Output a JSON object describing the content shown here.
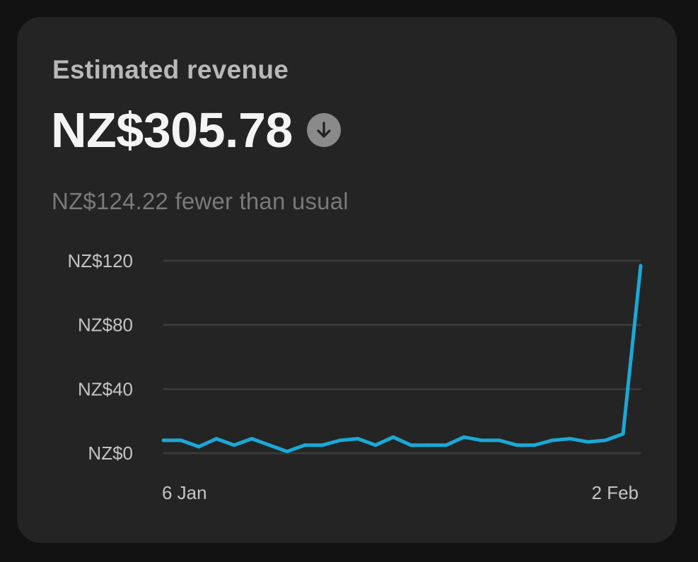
{
  "card": {
    "title": "Estimated revenue",
    "amount": "NZ$305.78",
    "trend_icon": "arrow-down-circle-icon",
    "comparison": "NZ$124.22 fewer than usual"
  },
  "colors": {
    "background": "#121212",
    "card": "#242424",
    "line": "#1aa9d6",
    "grid": "#3a3a3a"
  },
  "chart_data": {
    "type": "line",
    "title": "",
    "xlabel": "",
    "ylabel": "",
    "ylim": [
      0,
      120
    ],
    "y_ticks": [
      {
        "value": 120,
        "label": "NZ$120"
      },
      {
        "value": 80,
        "label": "NZ$80"
      },
      {
        "value": 40,
        "label": "NZ$40"
      },
      {
        "value": 0,
        "label": "NZ$0"
      }
    ],
    "x_tick_labels": [
      {
        "index": 0,
        "label": "6 Jan"
      },
      {
        "index": 27,
        "label": "2 Feb"
      }
    ],
    "grid": true,
    "series": [
      {
        "values": [
          8,
          8,
          4,
          9,
          5,
          9,
          5,
          1,
          5,
          5,
          8,
          9,
          5,
          10,
          5,
          5,
          5,
          10,
          8,
          8,
          5,
          5,
          8,
          9,
          7,
          8,
          12,
          117
        ]
      }
    ]
  }
}
